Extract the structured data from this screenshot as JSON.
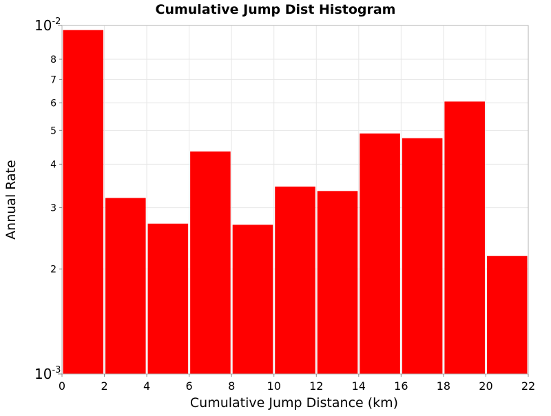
{
  "chart_data": {
    "type": "bar",
    "title": "Cumulative Jump Dist Histogram",
    "xlabel": "Cumulative Jump Distance (km)",
    "ylabel": "Annual Rate",
    "y_scale": "log",
    "xlim": [
      0,
      22
    ],
    "ylim": [
      0.001,
      0.01
    ],
    "grid": true,
    "bar_color": "#ff0000",
    "x_ticks": [
      "0",
      "2",
      "4",
      "6",
      "8",
      "10",
      "12",
      "14",
      "16",
      "18",
      "20",
      "22"
    ],
    "y_minor_ticks": [
      {
        "value": 0.002,
        "label": "2"
      },
      {
        "value": 0.003,
        "label": "3"
      },
      {
        "value": 0.004,
        "label": "4"
      },
      {
        "value": 0.005,
        "label": "5"
      },
      {
        "value": 0.006,
        "label": "6"
      },
      {
        "value": 0.007,
        "label": "7"
      },
      {
        "value": 0.008,
        "label": "8"
      }
    ],
    "y_major_ticks": [
      {
        "value": 0.001,
        "base": "10",
        "exponent": "-3"
      },
      {
        "value": 0.01,
        "base": "10",
        "exponent": "-2"
      }
    ],
    "bars": [
      {
        "x_start": 0,
        "x_end": 2,
        "value": 0.0097
      },
      {
        "x_start": 2,
        "x_end": 4,
        "value": 0.0032
      },
      {
        "x_start": 4,
        "x_end": 6,
        "value": 0.0027
      },
      {
        "x_start": 6,
        "x_end": 8,
        "value": 0.00435
      },
      {
        "x_start": 8,
        "x_end": 10,
        "value": 0.00268
      },
      {
        "x_start": 10,
        "x_end": 12,
        "value": 0.00345
      },
      {
        "x_start": 12,
        "x_end": 14,
        "value": 0.00335
      },
      {
        "x_start": 14,
        "x_end": 16,
        "value": 0.0049
      },
      {
        "x_start": 16,
        "x_end": 18,
        "value": 0.00475
      },
      {
        "x_start": 18,
        "x_end": 20,
        "value": 0.00605
      },
      {
        "x_start": 20,
        "x_end": 22,
        "value": 0.00218
      }
    ]
  }
}
